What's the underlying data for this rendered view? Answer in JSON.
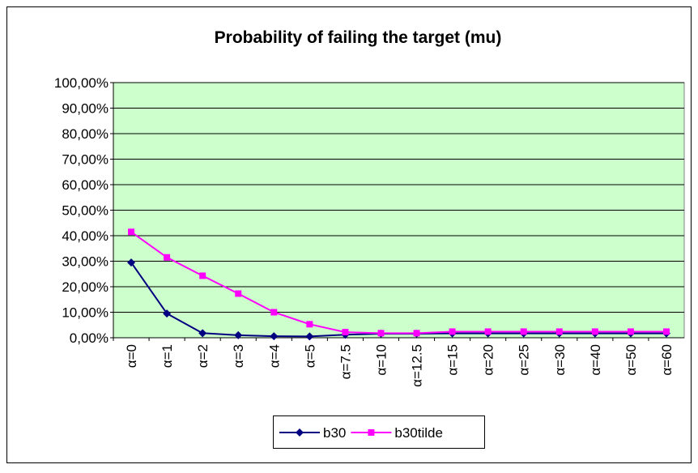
{
  "chart_data": {
    "type": "line",
    "title": "Probability of  failing the target (mu)",
    "categories": [
      "α=0",
      "α=1",
      "α=2",
      "α=3",
      "α=4",
      "α=5",
      "α=7.5",
      "α=10",
      "α=12.5",
      "α=15",
      "α=20",
      "α=25",
      "α=30",
      "α=40",
      "α=50",
      "α=60"
    ],
    "series": [
      {
        "name": "b30",
        "color": "#000080",
        "marker": "diamond",
        "values": [
          29.5,
          9.5,
          1.8,
          1.0,
          0.6,
          0.5,
          1.2,
          1.6,
          1.6,
          1.7,
          1.7,
          1.7,
          1.7,
          1.7,
          1.7,
          1.7
        ]
      },
      {
        "name": "b30tilde",
        "color": "#ff00ff",
        "marker": "square",
        "values": [
          41.5,
          31.5,
          24.3,
          17.3,
          10.0,
          5.3,
          2.2,
          1.8,
          1.8,
          2.4,
          2.4,
          2.4,
          2.4,
          2.4,
          2.4,
          2.4
        ]
      }
    ],
    "ylim": [
      0,
      100
    ],
    "yticks": [
      {
        "value": 0,
        "label": "0,00%"
      },
      {
        "value": 10,
        "label": "10,00%"
      },
      {
        "value": 20,
        "label": "20,00%"
      },
      {
        "value": 30,
        "label": "30,00%"
      },
      {
        "value": 40,
        "label": "40,00%"
      },
      {
        "value": 50,
        "label": "50,00%"
      },
      {
        "value": 60,
        "label": "60,00%"
      },
      {
        "value": 70,
        "label": "70,00%"
      },
      {
        "value": 80,
        "label": "80,00%"
      },
      {
        "value": 90,
        "label": "90,00%"
      },
      {
        "value": 100,
        "label": "100,00%"
      }
    ],
    "grid": true,
    "plot_background": "#ccffcc",
    "legend": "bottom"
  }
}
